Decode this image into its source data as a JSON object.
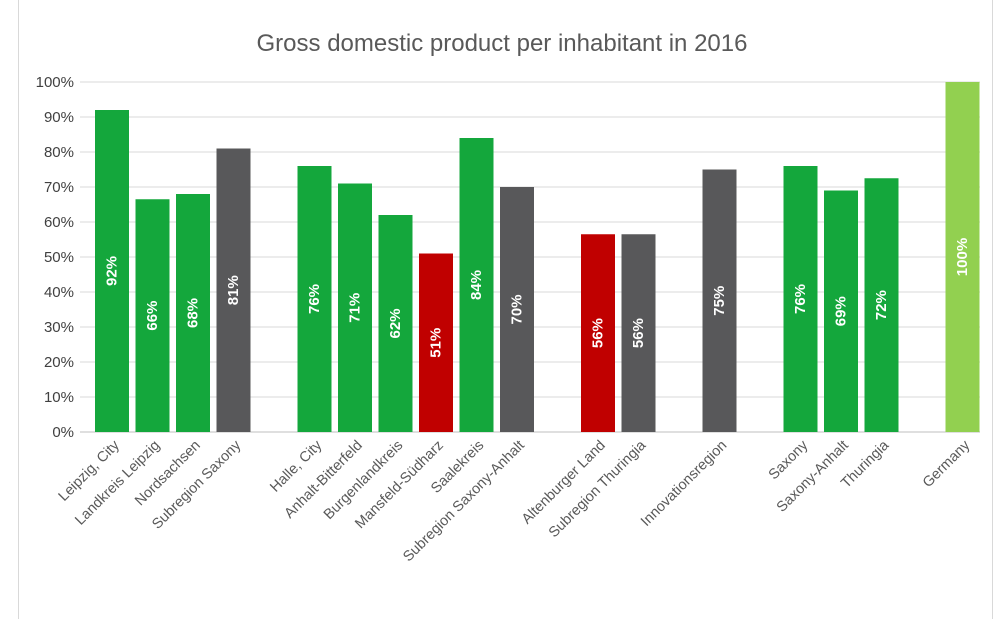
{
  "chart_data": {
    "type": "bar",
    "title": "Gross domestic product per inhabitant in 2016",
    "xlabel": "",
    "ylabel": "",
    "ylim": [
      0,
      100
    ],
    "yticks": [
      "0%",
      "10%",
      "20%",
      "30%",
      "40%",
      "50%",
      "60%",
      "70%",
      "80%",
      "90%",
      "100%"
    ],
    "grid": true,
    "legend": "none",
    "bars": [
      {
        "category": "Leipzig,  City",
        "value": 92,
        "label": "92%",
        "color": "#14a73c"
      },
      {
        "category": "Landkreis Leipzig",
        "value": 66.5,
        "label": "66%",
        "color": "#14a73c"
      },
      {
        "category": "Nordsachsen",
        "value": 68,
        "label": "68%",
        "color": "#14a73c"
      },
      {
        "category": "Subregion Saxony",
        "value": 81,
        "label": "81%",
        "color": "#58585a"
      },
      {
        "category": "Halle, City",
        "value": 76,
        "label": "76%",
        "color": "#14a73c"
      },
      {
        "category": "Anhalt-Bitterfeld",
        "value": 71,
        "label": "71%",
        "color": "#14a73c"
      },
      {
        "category": "Burgenlandkreis",
        "value": 62,
        "label": "62%",
        "color": "#14a73c"
      },
      {
        "category": "Mansfeld-Südharz",
        "value": 51,
        "label": "51%",
        "color": "#c00000"
      },
      {
        "category": "Saalekreis",
        "value": 84,
        "label": "84%",
        "color": "#14a73c"
      },
      {
        "category": "Subregion Saxony-Anhalt",
        "value": 70,
        "label": "70%",
        "color": "#58585a"
      },
      {
        "category": "Altenburger Land",
        "value": 56.5,
        "label": "56%",
        "color": "#c00000"
      },
      {
        "category": "Subregion Thuringia",
        "value": 56.5,
        "label": "56%",
        "color": "#58585a"
      },
      {
        "category": "Innovationsregion",
        "value": 75,
        "label": "75%",
        "color": "#58585a"
      },
      {
        "category": "Saxony",
        "value": 76,
        "label": "76%",
        "color": "#14a73c"
      },
      {
        "category": "Saxony-Anhalt",
        "value": 69,
        "label": "69%",
        "color": "#14a73c"
      },
      {
        "category": "Thuringia",
        "value": 72.5,
        "label": "72%",
        "color": "#14a73c"
      },
      {
        "category": "Germany",
        "value": 100,
        "label": "100%",
        "color": "#92d050"
      }
    ]
  }
}
